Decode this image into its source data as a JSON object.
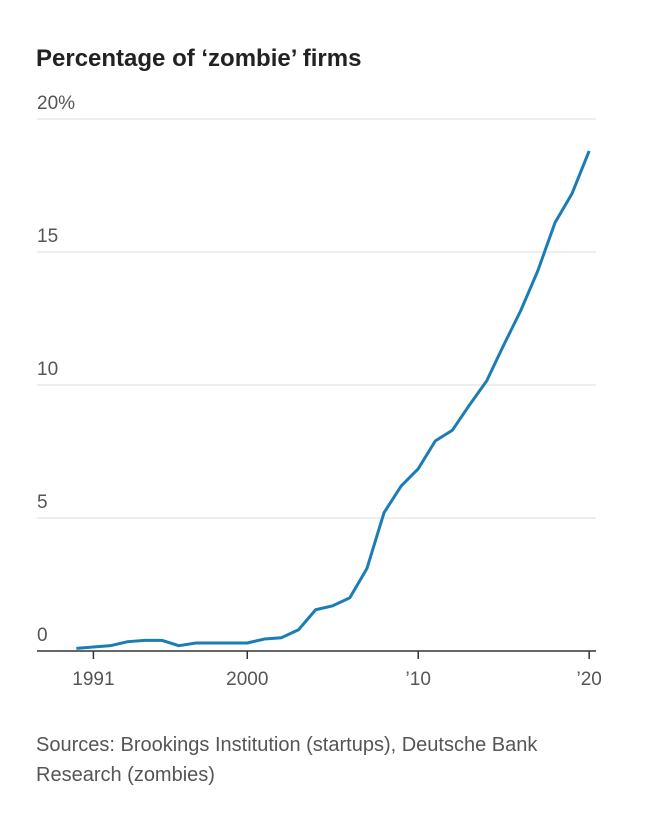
{
  "chart_data": {
    "type": "line",
    "title": "Percentage of ‘zombie’ firms",
    "source": "Sources: Brookings Institution (startups), Deutsche Bank Research (zombies)",
    "x": [
      1990,
      1991,
      1992,
      1993,
      1994,
      1995,
      1996,
      1997,
      1998,
      1999,
      2000,
      2001,
      2002,
      2003,
      2004,
      2005,
      2006,
      2007,
      2008,
      2009,
      2010,
      2011,
      2012,
      2013,
      2014,
      2015,
      2016,
      2017,
      2018,
      2019,
      2020
    ],
    "series": [
      {
        "name": "Zombie firms",
        "color": "#1b7db3",
        "values": [
          0.1,
          0.15,
          0.2,
          0.35,
          0.4,
          0.4,
          0.2,
          0.3,
          0.3,
          0.3,
          0.3,
          0.45,
          0.5,
          0.8,
          1.55,
          1.7,
          2.0,
          3.1,
          5.2,
          6.2,
          6.85,
          7.9,
          8.3,
          9.25,
          10.15,
          11.5,
          12.8,
          14.3,
          16.1,
          17.2,
          18.8
        ]
      }
    ],
    "xlim": [
      1987.7,
      2020.4
    ],
    "xticks": [
      1991,
      2000,
      {
        "value": 2010,
        "label": "’10"
      },
      {
        "value": 2020,
        "label": "’20"
      }
    ],
    "ylim": [
      0,
      20
    ],
    "yticks": [
      0,
      5,
      10,
      15,
      {
        "value": 20,
        "label": "20%"
      }
    ],
    "grid": true
  }
}
